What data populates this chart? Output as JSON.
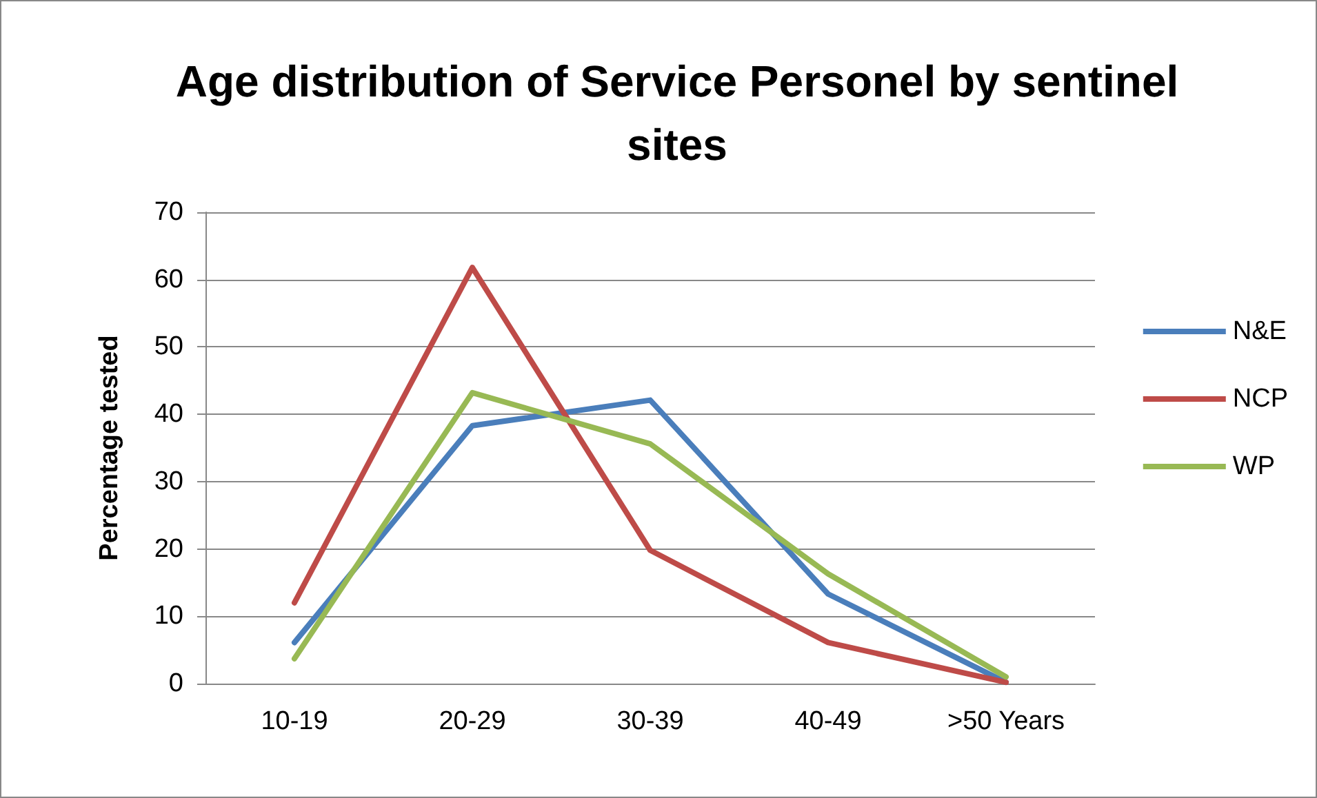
{
  "chart_data": {
    "type": "line",
    "title": "Age distribution of Service Personel by sentinel\nsites",
    "ylabel": "Percentage tested",
    "categories": [
      "10-19",
      "20-29",
      "30-39",
      "40-49",
      ">50 Years"
    ],
    "series": [
      {
        "name": "N&E",
        "color": "#4a7ebb",
        "values": [
          6.1,
          38.3,
          42.1,
          13.3,
          0.2
        ]
      },
      {
        "name": "NCP",
        "color": "#be4b48",
        "values": [
          12,
          61.8,
          19.8,
          6.1,
          0.2
        ]
      },
      {
        "name": "WP",
        "color": "#98b954",
        "values": [
          3.7,
          43.2,
          35.6,
          16.3,
          1
        ]
      }
    ],
    "ylim": [
      0,
      70
    ],
    "yticks": [
      0,
      10,
      20,
      30,
      40,
      50,
      60,
      70
    ],
    "grid": "y",
    "legend": "right",
    "marker": "none",
    "line_style": "solid"
  }
}
